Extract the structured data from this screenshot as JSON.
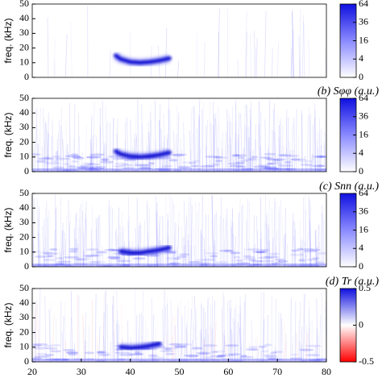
{
  "chart_data": [
    {
      "type": "spectrogram",
      "ylabel": "freq. (kHz)",
      "ylim": [
        0,
        50
      ],
      "yticks": [
        0,
        10,
        20,
        30,
        40,
        50
      ],
      "xlim": [
        20,
        80
      ],
      "ridge": {
        "x": [
          37,
          38,
          40,
          42,
          44,
          46,
          48
        ],
        "values": [
          15,
          12.5,
          10.5,
          10,
          10.5,
          11.5,
          13
        ]
      },
      "cmap": "blues",
      "cbar_scale": "sqrt",
      "cbar_lim": [
        0,
        64
      ],
      "cbar_ticks": [
        0,
        4,
        16,
        36,
        64
      ]
    },
    {
      "type": "spectrogram",
      "title": "(b) Sφφ (a.u.)",
      "ylabel": "freq. (kHz)",
      "ylim": [
        0,
        50
      ],
      "yticks": [
        0,
        10,
        20,
        30,
        40,
        50
      ],
      "xlim": [
        20,
        80
      ],
      "ridge": {
        "x": [
          37,
          38,
          40,
          42,
          44,
          46,
          48
        ],
        "values": [
          14,
          12,
          10.5,
          10,
          10.5,
          11.5,
          13
        ]
      },
      "cmap": "blues",
      "cbar_scale": "sqrt",
      "cbar_lim": [
        0,
        64
      ],
      "cbar_ticks": [
        0,
        4,
        16,
        36,
        64
      ]
    },
    {
      "type": "spectrogram",
      "title": "(c) Snn (a.u.)",
      "ylabel": "freq. (kHz)",
      "ylim": [
        0,
        50
      ],
      "yticks": [
        0,
        10,
        20,
        30,
        40,
        50
      ],
      "xlim": [
        20,
        80
      ],
      "ridge": {
        "x": [
          38,
          40,
          42,
          44,
          46,
          48
        ],
        "values": [
          10.5,
          9.5,
          9.5,
          10.5,
          11.5,
          13
        ]
      },
      "cmap": "blues",
      "cbar_scale": "sqrt",
      "cbar_lim": [
        0,
        64
      ],
      "cbar_ticks": [
        0,
        4,
        16,
        36,
        64
      ]
    },
    {
      "type": "spectrogram",
      "title": "(d) Tr (a.u.)",
      "ylabel": "freq. (kHz)",
      "ylim": [
        0,
        50
      ],
      "yticks": [
        0,
        10,
        20,
        30,
        40,
        50
      ],
      "xlim": [
        20,
        80
      ],
      "xticks": [
        20,
        30,
        40,
        50,
        60,
        70,
        80
      ],
      "ridge": {
        "x": [
          38,
          40,
          42,
          44,
          46
        ],
        "values": [
          10,
          9.5,
          10,
          11,
          12.5
        ]
      },
      "cmap": "diverging",
      "cbar_scale": "linear",
      "cbar_lim": [
        -0.5,
        0.5
      ],
      "cbar_ticks": [
        -0.5,
        0,
        0.5
      ]
    }
  ]
}
